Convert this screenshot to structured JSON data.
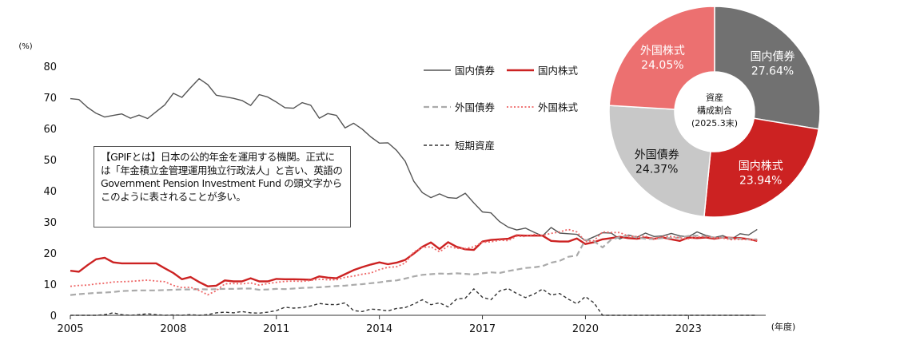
{
  "chart_data": [
    {
      "type": "line",
      "y_unit": "(%)",
      "x_unit": "(年度)",
      "ylim": [
        0,
        80
      ],
      "yticks": [
        0,
        10,
        20,
        30,
        40,
        50,
        60,
        70,
        80
      ],
      "xlim": [
        2005,
        2025.25
      ],
      "xticks": [
        "2005",
        "2008",
        "2011",
        "2014",
        "2017",
        "2020",
        "2023"
      ],
      "grid": false,
      "legend_position": "top-right",
      "note": "【GPIFとは】日本の公的年金を運用する機関。正式には「年金積立金管理運用独立行政法人」と言い、英語のGovernment Pension Investment Fund の頭文字からこのように表されることが多い。",
      "series": [
        {
          "name": "国内債券",
          "color": "#555555",
          "style": "solid",
          "x": [
            2005,
            2005.25,
            2005.5,
            2005.75,
            2006,
            2006.25,
            2006.5,
            2006.75,
            2007,
            2007.25,
            2007.5,
            2007.75,
            2008,
            2008.25,
            2008.5,
            2008.75,
            2009,
            2009.25,
            2009.5,
            2009.75,
            2010,
            2010.25,
            2010.5,
            2010.75,
            2011,
            2011.25,
            2011.5,
            2011.75,
            2012,
            2012.25,
            2012.5,
            2012.75,
            2013,
            2013.25,
            2013.5,
            2013.75,
            2014,
            2014.25,
            2014.5,
            2014.75,
            2015,
            2015.25,
            2015.5,
            2015.75,
            2016,
            2016.25,
            2016.5,
            2016.75,
            2017,
            2017.25,
            2017.5,
            2017.75,
            2018,
            2018.25,
            2018.5,
            2018.75,
            2019,
            2019.25,
            2019.5,
            2019.75,
            2020,
            2020.25,
            2020.5,
            2020.75,
            2021,
            2021.25,
            2021.5,
            2021.75,
            2022,
            2022.25,
            2022.5,
            2022.75,
            2023,
            2023.25,
            2023.5,
            2023.75,
            2024,
            2024.25,
            2024.5,
            2024.75,
            2025
          ],
          "values": [
            69.6,
            69.3,
            66.8,
            64.9,
            63.7,
            64.2,
            64.7,
            63.3,
            64.3,
            63.2,
            65.4,
            67.6,
            71.3,
            70.0,
            73.1,
            76.0,
            74.1,
            70.7,
            70.2,
            69.7,
            69.0,
            67.4,
            70.9,
            70.1,
            68.5,
            66.7,
            66.5,
            68.3,
            67.5,
            63.3,
            64.8,
            64.2,
            60.2,
            61.7,
            59.8,
            57.3,
            55.3,
            55.4,
            53.0,
            49.5,
            43.1,
            39.4,
            37.8,
            39.0,
            37.8,
            37.6,
            39.2,
            36.1,
            33.2,
            32.9,
            30.1,
            28.3,
            27.4,
            28.0,
            26.7,
            25.5,
            28.2,
            26.4,
            26.2,
            26.0,
            24.0,
            25.2,
            26.5,
            26.4,
            24.5,
            25.8,
            25.1,
            26.4,
            25.3,
            25.5,
            26.3,
            25.5,
            25.2,
            26.8,
            25.7,
            25.0,
            25.6,
            24.4,
            26.2,
            25.8,
            27.6
          ]
        },
        {
          "name": "国内株式",
          "color": "#cc2222",
          "style": "solid",
          "x": [
            2005,
            2005.25,
            2005.5,
            2005.75,
            2006,
            2006.25,
            2006.5,
            2006.75,
            2007,
            2007.25,
            2007.5,
            2007.75,
            2008,
            2008.25,
            2008.5,
            2008.75,
            2009,
            2009.25,
            2009.5,
            2009.75,
            2010,
            2010.25,
            2010.5,
            2010.75,
            2011,
            2011.25,
            2011.5,
            2011.75,
            2012,
            2012.25,
            2012.5,
            2012.75,
            2013,
            2013.25,
            2013.5,
            2013.75,
            2014,
            2014.25,
            2014.5,
            2014.75,
            2015,
            2015.25,
            2015.5,
            2015.75,
            2016,
            2016.25,
            2016.5,
            2016.75,
            2017,
            2017.25,
            2017.5,
            2017.75,
            2018,
            2018.25,
            2018.5,
            2018.75,
            2019,
            2019.25,
            2019.5,
            2019.75,
            2020,
            2020.25,
            2020.5,
            2020.75,
            2021,
            2021.25,
            2021.5,
            2021.75,
            2022,
            2022.25,
            2022.5,
            2022.75,
            2023,
            2023.25,
            2023.5,
            2023.75,
            2024,
            2024.25,
            2024.5,
            2024.75,
            2025
          ],
          "values": [
            14.3,
            14.0,
            16.1,
            18.0,
            18.5,
            17.0,
            16.7,
            16.7,
            16.7,
            16.7,
            16.7,
            15.1,
            13.6,
            11.6,
            12.3,
            10.7,
            9.3,
            9.5,
            11.2,
            10.9,
            10.9,
            11.9,
            10.9,
            10.9,
            11.7,
            11.6,
            11.6,
            11.5,
            11.4,
            12.5,
            12.1,
            11.9,
            13.2,
            14.5,
            15.5,
            16.3,
            17.0,
            16.4,
            16.9,
            17.8,
            19.8,
            22.0,
            23.4,
            21.3,
            23.5,
            22.0,
            21.2,
            21.0,
            23.7,
            24.2,
            24.4,
            24.6,
            25.7,
            25.6,
            25.6,
            25.6,
            23.9,
            23.7,
            23.7,
            24.7,
            22.9,
            23.5,
            24.4,
            24.8,
            25.2,
            24.8,
            24.6,
            25.0,
            24.6,
            25.0,
            24.4,
            23.9,
            25.0,
            24.8,
            25.0,
            24.6,
            25.0,
            24.9,
            24.8,
            24.5,
            23.9
          ]
        },
        {
          "name": "外国債券",
          "color": "#aaaaaa",
          "style": "dashed",
          "x": [
            2005,
            2005.25,
            2005.5,
            2005.75,
            2006,
            2006.25,
            2006.5,
            2006.75,
            2007,
            2007.25,
            2007.5,
            2007.75,
            2008,
            2008.25,
            2008.5,
            2008.75,
            2009,
            2009.25,
            2009.5,
            2009.75,
            2010,
            2010.25,
            2010.5,
            2010.75,
            2011,
            2011.25,
            2011.5,
            2011.75,
            2012,
            2012.25,
            2012.5,
            2012.75,
            2013,
            2013.25,
            2013.5,
            2013.75,
            2014,
            2014.25,
            2014.5,
            2014.75,
            2015,
            2015.25,
            2015.5,
            2015.75,
            2016,
            2016.25,
            2016.5,
            2016.75,
            2017,
            2017.25,
            2017.5,
            2017.75,
            2018,
            2018.25,
            2018.5,
            2018.75,
            2019,
            2019.25,
            2019.5,
            2019.75,
            2020,
            2020.25,
            2020.5,
            2020.75,
            2021,
            2021.25,
            2021.5,
            2021.75,
            2022,
            2022.25,
            2022.5,
            2022.75,
            2023,
            2023.25,
            2023.5,
            2023.75,
            2024,
            2024.25,
            2024.5,
            2024.75,
            2025
          ],
          "values": [
            6.5,
            6.8,
            7.0,
            7.2,
            7.3,
            7.5,
            7.8,
            7.9,
            8.0,
            8.0,
            8.0,
            8.1,
            8.2,
            8.3,
            8.3,
            8.4,
            8.3,
            8.4,
            8.5,
            8.5,
            8.6,
            8.6,
            8.2,
            8.3,
            8.5,
            8.4,
            8.6,
            8.8,
            8.9,
            9.0,
            9.2,
            9.4,
            9.5,
            9.8,
            10.0,
            10.3,
            10.6,
            11.0,
            11.2,
            11.8,
            12.5,
            13.0,
            13.2,
            13.4,
            13.3,
            13.5,
            13.3,
            13.1,
            13.5,
            13.8,
            13.6,
            14.2,
            14.7,
            15.2,
            15.4,
            15.8,
            16.9,
            17.5,
            18.8,
            19.2,
            24.2,
            23.8,
            21.8,
            24.3,
            25.1,
            25.6,
            25.0,
            24.6,
            24.5,
            24.8,
            24.8,
            25.0,
            25.5,
            25.6,
            25.3,
            25.0,
            25.0,
            24.8,
            24.6,
            24.4,
            24.4
          ]
        },
        {
          "name": "外国株式",
          "color": "#ee6666",
          "style": "dotted",
          "x": [
            2005,
            2005.25,
            2005.5,
            2005.75,
            2006,
            2006.25,
            2006.5,
            2006.75,
            2007,
            2007.25,
            2007.5,
            2007.75,
            2008,
            2008.25,
            2008.5,
            2008.75,
            2009,
            2009.25,
            2009.5,
            2009.75,
            2010,
            2010.25,
            2010.5,
            2010.75,
            2011,
            2011.25,
            2011.5,
            2011.75,
            2012,
            2012.25,
            2012.5,
            2012.75,
            2013,
            2013.25,
            2013.5,
            2013.75,
            2014,
            2014.25,
            2014.5,
            2014.75,
            2015,
            2015.25,
            2015.5,
            2015.75,
            2016,
            2016.25,
            2016.5,
            2016.75,
            2017,
            2017.25,
            2017.5,
            2017.75,
            2018,
            2018.25,
            2018.5,
            2018.75,
            2019,
            2019.25,
            2019.5,
            2019.75,
            2020,
            2020.25,
            2020.5,
            2020.75,
            2021,
            2021.25,
            2021.5,
            2021.75,
            2022,
            2022.25,
            2022.5,
            2022.75,
            2023,
            2023.25,
            2023.5,
            2023.75,
            2024,
            2024.25,
            2024.5,
            2024.75,
            2025
          ],
          "values": [
            9.3,
            9.6,
            9.7,
            10.1,
            10.3,
            10.7,
            10.8,
            10.9,
            11.1,
            11.3,
            11.0,
            10.8,
            9.6,
            8.9,
            9.0,
            8.0,
            6.6,
            7.9,
            10.1,
            10.2,
            10.1,
            10.4,
            9.7,
            10.2,
            10.6,
            10.9,
            11.0,
            10.9,
            11.2,
            11.6,
            11.4,
            11.4,
            12.2,
            12.6,
            13.2,
            13.6,
            14.7,
            15.4,
            15.6,
            16.8,
            20.3,
            21.8,
            22.0,
            20.4,
            22.2,
            21.5,
            21.4,
            22.0,
            23.5,
            23.6,
            24.1,
            24.0,
            25.4,
            25.3,
            26.0,
            25.7,
            26.3,
            26.8,
            27.6,
            26.8,
            23.7,
            24.0,
            26.8,
            26.6,
            26.6,
            25.4,
            25.3,
            25.4,
            24.3,
            25.3,
            25.3,
            24.9,
            24.6,
            25.1,
            25.3,
            24.9,
            24.8,
            24.3,
            24.4,
            24.3,
            24.1
          ]
        },
        {
          "name": "短期資産",
          "color": "#333333",
          "style": "dashed",
          "x": [
            2005,
            2005.25,
            2005.5,
            2005.75,
            2006,
            2006.25,
            2006.5,
            2006.75,
            2007,
            2007.25,
            2007.5,
            2007.75,
            2008,
            2008.25,
            2008.5,
            2008.75,
            2009,
            2009.25,
            2009.5,
            2009.75,
            2010,
            2010.25,
            2010.5,
            2010.75,
            2011,
            2011.25,
            2011.5,
            2011.75,
            2012,
            2012.25,
            2012.5,
            2012.75,
            2013,
            2013.25,
            2013.5,
            2013.75,
            2014,
            2014.25,
            2014.5,
            2014.75,
            2015,
            2015.25,
            2015.5,
            2015.75,
            2016,
            2016.25,
            2016.5,
            2016.75,
            2017,
            2017.25,
            2017.5,
            2017.75,
            2018,
            2018.25,
            2018.5,
            2018.75,
            2019,
            2019.25,
            2019.5,
            2019.75,
            2020,
            2020.25,
            2020.5,
            2020.75,
            2021,
            2021.25,
            2021.5,
            2021.75,
            2022,
            2022.25,
            2022.5,
            2022.75,
            2023,
            2023.25,
            2023.5,
            2023.75,
            2024,
            2024.25,
            2024.5,
            2024.75,
            2025
          ],
          "values": [
            0.0,
            0.0,
            0.0,
            0.0,
            0.2,
            0.8,
            0.2,
            0.0,
            0.2,
            0.5,
            0.2,
            0.0,
            0.1,
            0.0,
            0.2,
            0.0,
            0.2,
            0.8,
            1.0,
            0.8,
            1.2,
            0.8,
            0.7,
            1.0,
            1.5,
            2.6,
            2.3,
            2.5,
            3.0,
            3.8,
            3.5,
            3.4,
            4.0,
            1.5,
            1.2,
            2.0,
            1.8,
            1.4,
            2.2,
            2.5,
            3.6,
            5.0,
            3.4,
            4.0,
            2.7,
            5.2,
            5.5,
            8.5,
            5.8,
            5.0,
            7.8,
            8.6,
            7.0,
            5.7,
            6.8,
            8.4,
            6.5,
            7.0,
            5.2,
            3.7,
            6.0,
            4.0,
            0.0,
            0.0,
            0.0,
            0.0,
            0.0,
            0.0,
            0.0,
            0.0,
            0.0,
            0.0,
            0.0,
            0.0,
            0.0,
            0.0,
            0.0,
            0.0,
            0.0,
            0.0,
            0.0
          ]
        }
      ]
    },
    {
      "type": "pie",
      "variant": "donut",
      "center_label": "資産\n構成割合\n(2025.3末)",
      "slices": [
        {
          "label": "国内債券",
          "value": 27.64,
          "value_label": "27.64%",
          "color": "#717171",
          "text_color": "#ffffff"
        },
        {
          "label": "国内株式",
          "value": 23.94,
          "value_label": "23.94%",
          "color": "#cc2222",
          "text_color": "#ffffff"
        },
        {
          "label": "外国債券",
          "value": 24.37,
          "value_label": "24.37%",
          "color": "#c8c8c8",
          "text_color": "#111111"
        },
        {
          "label": "外国株式",
          "value": 24.05,
          "value_label": "24.05%",
          "color": "#ec7070",
          "text_color": "#ffffff"
        }
      ]
    }
  ]
}
